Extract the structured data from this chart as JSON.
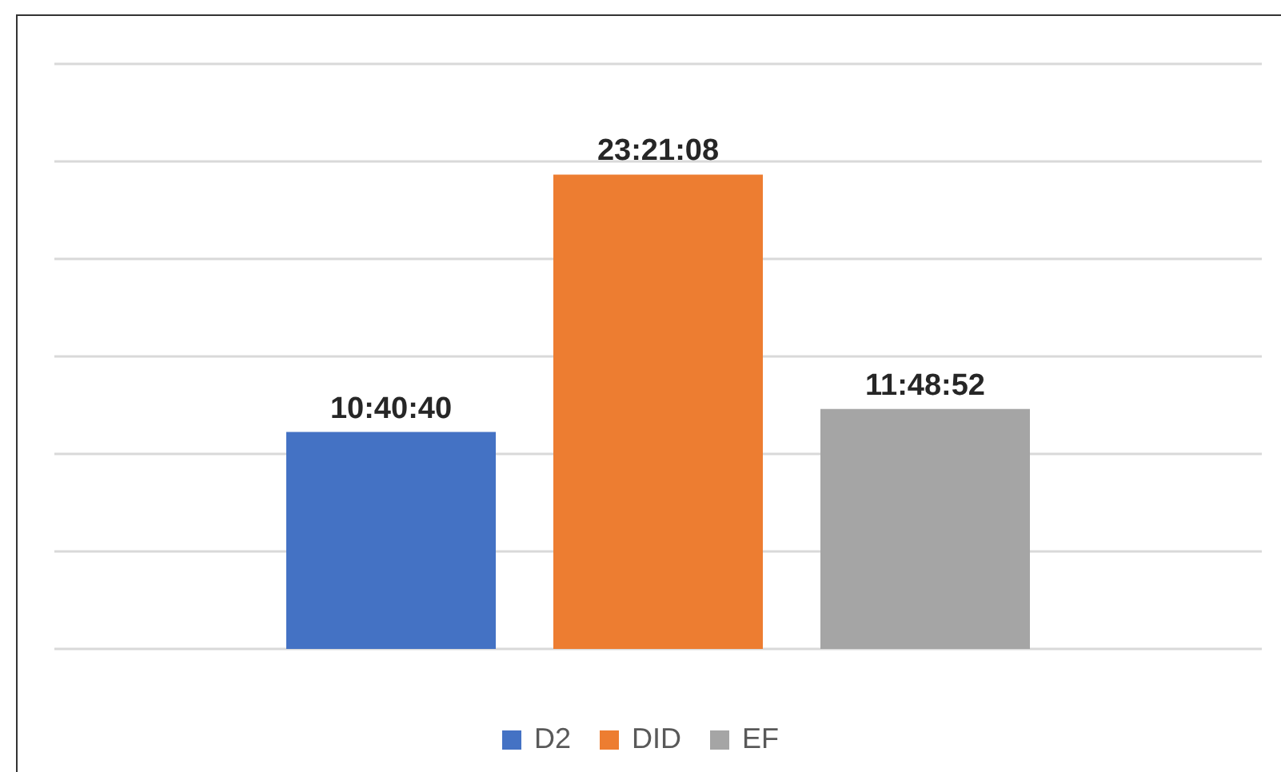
{
  "chart_data": {
    "type": "bar",
    "categories": [
      null
    ],
    "series": [
      {
        "name": "D2",
        "color": "#4472c4",
        "values": [
          10.6778
        ],
        "value_labels": [
          "10:40:40"
        ]
      },
      {
        "name": "DID",
        "color": "#ed7d31",
        "values": [
          23.3522
        ],
        "value_labels": [
          "23:21:08"
        ]
      },
      {
        "name": "EF",
        "color": "#a5a5a5",
        "values": [
          11.8144
        ],
        "value_labels": [
          "11:48:52"
        ]
      }
    ],
    "ylim": [
      0,
      28.8
    ],
    "yticks": [
      {
        "value": 0,
        "label": null
      },
      {
        "value": 4.8,
        "label": null
      },
      {
        "value": 9.6,
        "label": null
      },
      {
        "value": 14.4,
        "label": null
      },
      {
        "value": 19.2,
        "label": null
      },
      {
        "value": 24,
        "label": null
      },
      {
        "value": 28.8,
        "label": null
      }
    ],
    "tick_labels": false,
    "grid": "y",
    "legend": "bottom"
  }
}
